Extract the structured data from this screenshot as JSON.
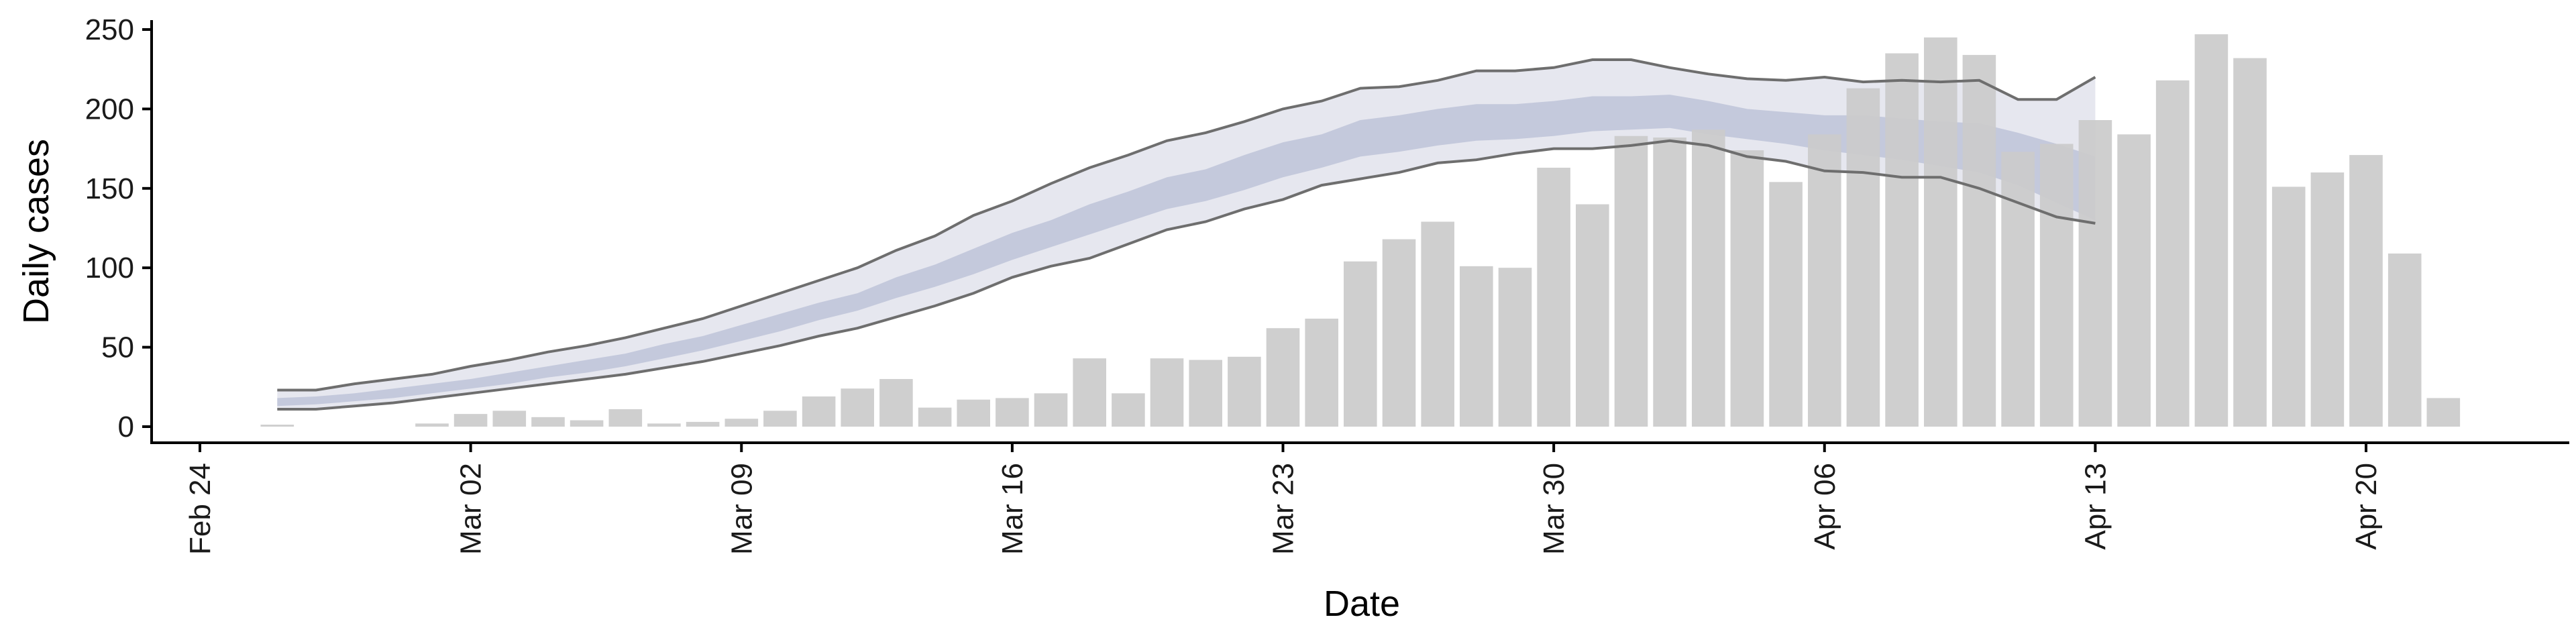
{
  "chart_data": {
    "type": "bar",
    "title": "",
    "xlabel": "Date",
    "ylabel": "Daily cases",
    "ylim": [
      -10,
      260
    ],
    "y_ticks": [
      0,
      50,
      100,
      150,
      200,
      250
    ],
    "x_ticks": [
      {
        "date": "2020-02-24",
        "label": "Feb 24"
      },
      {
        "date": "2020-03-02",
        "label": "Mar 02"
      },
      {
        "date": "2020-03-09",
        "label": "Mar 09"
      },
      {
        "date": "2020-03-16",
        "label": "Mar 16"
      },
      {
        "date": "2020-03-23",
        "label": "Mar 23"
      },
      {
        "date": "2020-03-30",
        "label": "Mar 30"
      },
      {
        "date": "2020-04-06",
        "label": "Apr 06"
      },
      {
        "date": "2020-04-13",
        "label": "Apr 13"
      },
      {
        "date": "2020-04-20",
        "label": "Apr 20"
      }
    ],
    "xlim": [
      "2020-02-24",
      "2020-04-23"
    ],
    "grid": false,
    "bars": {
      "x": [
        "2020-02-26",
        "2020-02-27",
        "2020-02-28",
        "2020-02-29",
        "2020-03-01",
        "2020-03-02",
        "2020-03-03",
        "2020-03-04",
        "2020-03-05",
        "2020-03-06",
        "2020-03-07",
        "2020-03-08",
        "2020-03-09",
        "2020-03-10",
        "2020-03-11",
        "2020-03-12",
        "2020-03-13",
        "2020-03-14",
        "2020-03-15",
        "2020-03-16",
        "2020-03-17",
        "2020-03-18",
        "2020-03-19",
        "2020-03-20",
        "2020-03-21",
        "2020-03-22",
        "2020-03-23",
        "2020-03-24",
        "2020-03-25",
        "2020-03-26",
        "2020-03-27",
        "2020-03-28",
        "2020-03-29",
        "2020-03-30",
        "2020-03-31",
        "2020-04-01",
        "2020-04-02",
        "2020-04-03",
        "2020-04-04",
        "2020-04-05",
        "2020-04-06",
        "2020-04-07",
        "2020-04-08",
        "2020-04-09",
        "2020-04-10",
        "2020-04-11",
        "2020-04-12",
        "2020-04-13",
        "2020-04-14",
        "2020-04-15",
        "2020-04-16",
        "2020-04-17",
        "2020-04-18",
        "2020-04-19",
        "2020-04-20",
        "2020-04-21",
        "2020-04-22"
      ],
      "values": [
        1,
        0,
        0,
        0,
        2,
        8,
        10,
        6,
        4,
        11,
        2,
        3,
        5,
        10,
        19,
        24,
        30,
        12,
        17,
        18,
        21,
        43,
        21,
        43,
        42,
        44,
        62,
        68,
        104,
        118,
        129,
        101,
        100,
        163,
        140,
        183,
        182,
        187,
        174,
        154,
        184,
        213,
        235,
        245,
        234,
        173,
        178,
        193,
        184,
        218,
        247,
        232,
        151,
        160,
        171,
        109,
        18
      ],
      "color": "#cbcbcb"
    },
    "series": [
      {
        "type": "median-with-bands",
        "x": [
          "2020-02-26",
          "2020-02-27",
          "2020-02-28",
          "2020-02-29",
          "2020-03-01",
          "2020-03-02",
          "2020-03-03",
          "2020-03-04",
          "2020-03-05",
          "2020-03-06",
          "2020-03-07",
          "2020-03-08",
          "2020-03-09",
          "2020-03-10",
          "2020-03-11",
          "2020-03-12",
          "2020-03-13",
          "2020-03-14",
          "2020-03-15",
          "2020-03-16",
          "2020-03-17",
          "2020-03-18",
          "2020-03-19",
          "2020-03-20",
          "2020-03-21",
          "2020-03-22",
          "2020-03-23",
          "2020-03-24",
          "2020-03-25",
          "2020-03-26",
          "2020-03-27",
          "2020-03-28",
          "2020-03-29",
          "2020-03-30",
          "2020-03-31",
          "2020-04-01",
          "2020-04-02",
          "2020-04-03",
          "2020-04-04",
          "2020-04-05",
          "2020-04-06",
          "2020-04-07",
          "2020-04-08",
          "2020-04-09",
          "2020-04-10",
          "2020-04-11",
          "2020-04-12",
          "2020-04-13"
        ],
        "outer_upper": [
          23,
          23,
          27,
          30,
          33,
          38,
          42,
          47,
          51,
          56,
          62,
          68,
          76,
          84,
          92,
          100,
          111,
          120,
          133,
          142,
          153,
          163,
          171,
          180,
          185,
          192,
          200,
          205,
          213,
          214,
          218,
          224,
          224,
          226,
          231,
          231,
          226,
          222,
          219,
          218,
          220,
          217,
          218,
          217,
          218,
          206,
          206,
          220
        ],
        "outer_lower": [
          11,
          11,
          13,
          15,
          18,
          21,
          24,
          27,
          30,
          33,
          37,
          41,
          46,
          51,
          57,
          62,
          69,
          76,
          84,
          94,
          101,
          106,
          115,
          124,
          129,
          137,
          143,
          152,
          156,
          160,
          166,
          168,
          172,
          175,
          175,
          177,
          180,
          177,
          170,
          167,
          161,
          160,
          157,
          157,
          150,
          141,
          132,
          128
        ],
        "inner_upper": [
          18,
          19,
          21,
          24,
          27,
          30,
          34,
          38,
          42,
          46,
          52,
          57,
          64,
          71,
          78,
          84,
          94,
          102,
          112,
          122,
          130,
          140,
          148,
          157,
          162,
          171,
          179,
          184,
          193,
          196,
          200,
          203,
          203,
          205,
          208,
          208,
          209,
          205,
          200,
          198,
          196,
          196,
          194,
          192,
          191,
          185,
          178,
          170
        ],
        "inner_lower": [
          13,
          14,
          16,
          18,
          21,
          24,
          27,
          31,
          34,
          38,
          43,
          48,
          54,
          60,
          67,
          73,
          81,
          88,
          96,
          105,
          113,
          121,
          129,
          137,
          142,
          149,
          157,
          163,
          170,
          173,
          177,
          180,
          181,
          183,
          186,
          187,
          188,
          184,
          181,
          178,
          174,
          171,
          168,
          164,
          160,
          152,
          141,
          130
        ],
        "outer_color": "#e6e7ef",
        "inner_color": "#c4c9dc",
        "line_color": "#6e6e6e"
      }
    ]
  }
}
